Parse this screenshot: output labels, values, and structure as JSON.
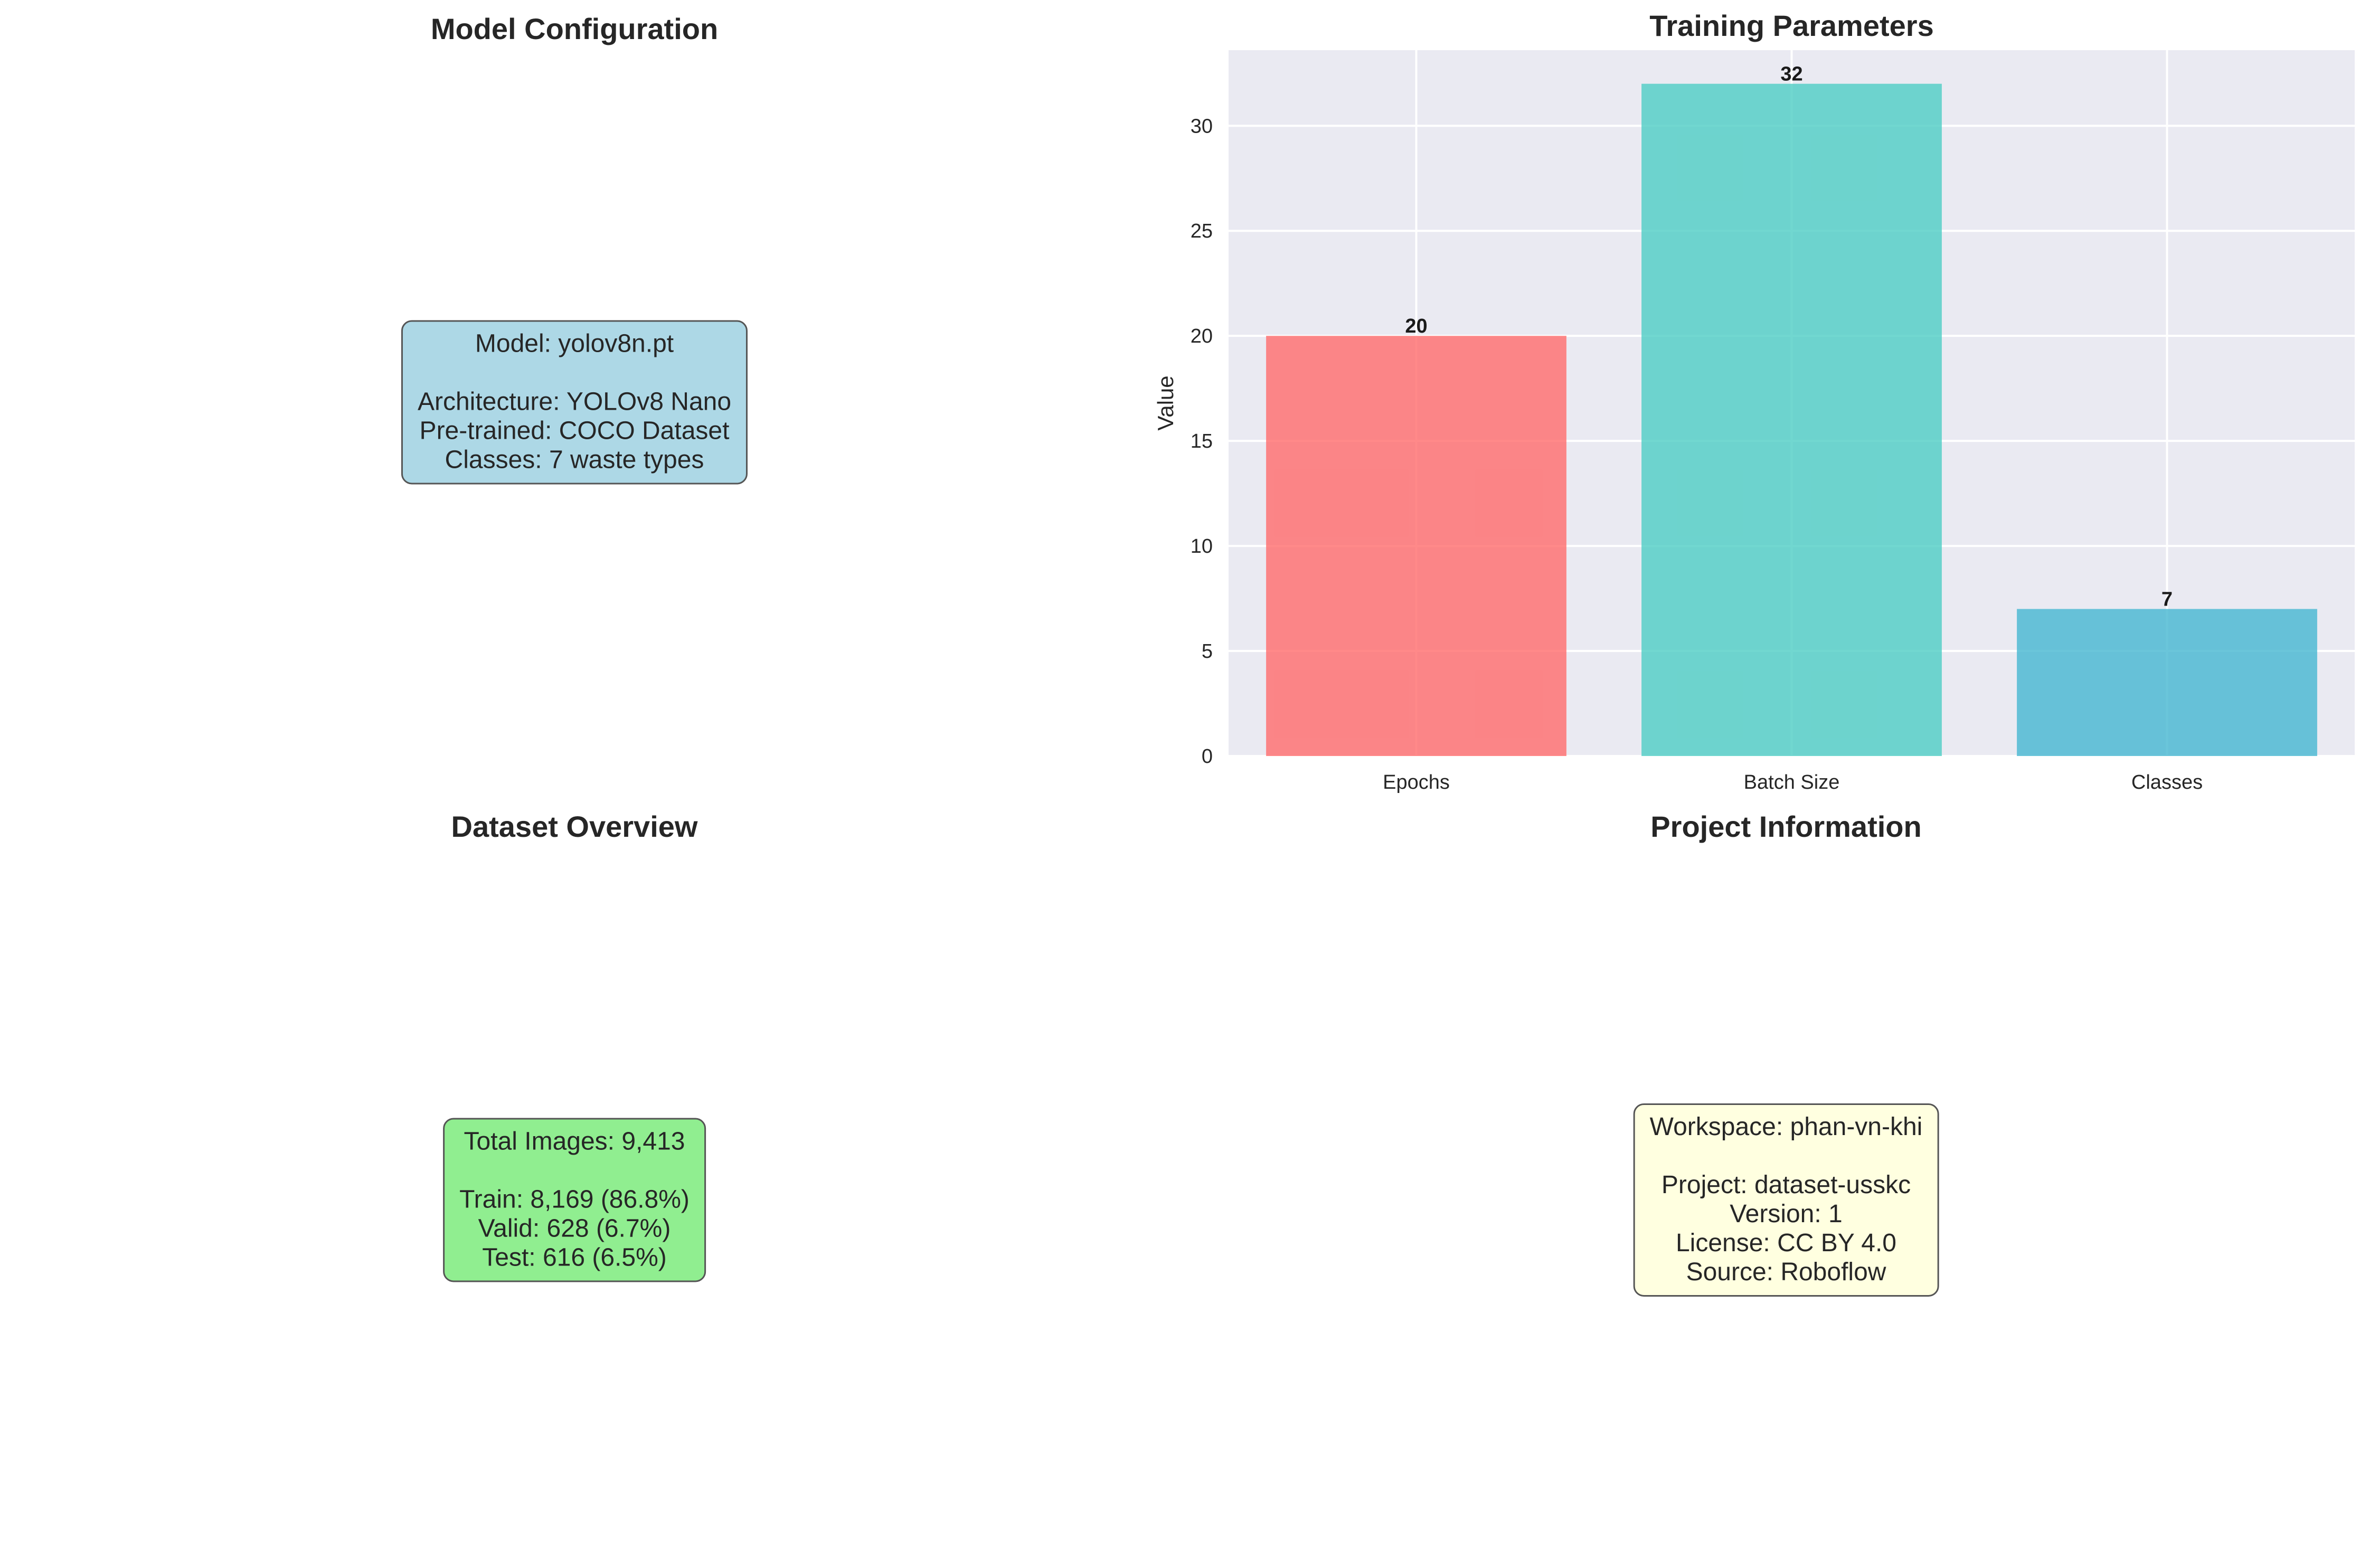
{
  "panels": {
    "model": {
      "title": "Model Configuration",
      "header": "Model: yolov8n.pt",
      "lines": [
        "Architecture: YOLOv8 Nano",
        "Pre-trained: COCO Dataset",
        "Classes: 7 waste types"
      ],
      "box_color": "#add8e6"
    },
    "dataset": {
      "title": "Dataset Overview",
      "header": "Total Images: 9,413",
      "lines": [
        "Train: 8,169 (86.8%)",
        "Valid: 628 (6.7%)",
        "Test: 616 (6.5%)"
      ],
      "box_color": "#90ee90"
    },
    "project": {
      "title": "Project Information",
      "header": "Workspace: phan-vn-khi",
      "lines": [
        "Project: dataset-usskc",
        "Version: 1",
        "License: CC BY 4.0",
        "Source: Roboflow"
      ],
      "box_color": "#ffffe0"
    }
  },
  "chart_data": {
    "type": "bar",
    "title": "Training Parameters",
    "categories": [
      "Epochs",
      "Batch Size",
      "Classes"
    ],
    "values": [
      20,
      32,
      7
    ],
    "data_labels": [
      "20",
      "32",
      "7"
    ],
    "colors": [
      "#ff6b6b",
      "#4ecdc4",
      "#45b7d1"
    ],
    "xlabel": "",
    "ylabel": "Value",
    "ylim": [
      0,
      33.6
    ],
    "yticks": [
      0,
      5,
      10,
      15,
      20,
      25,
      30
    ],
    "grid": true,
    "background": "#eaeaf2"
  }
}
